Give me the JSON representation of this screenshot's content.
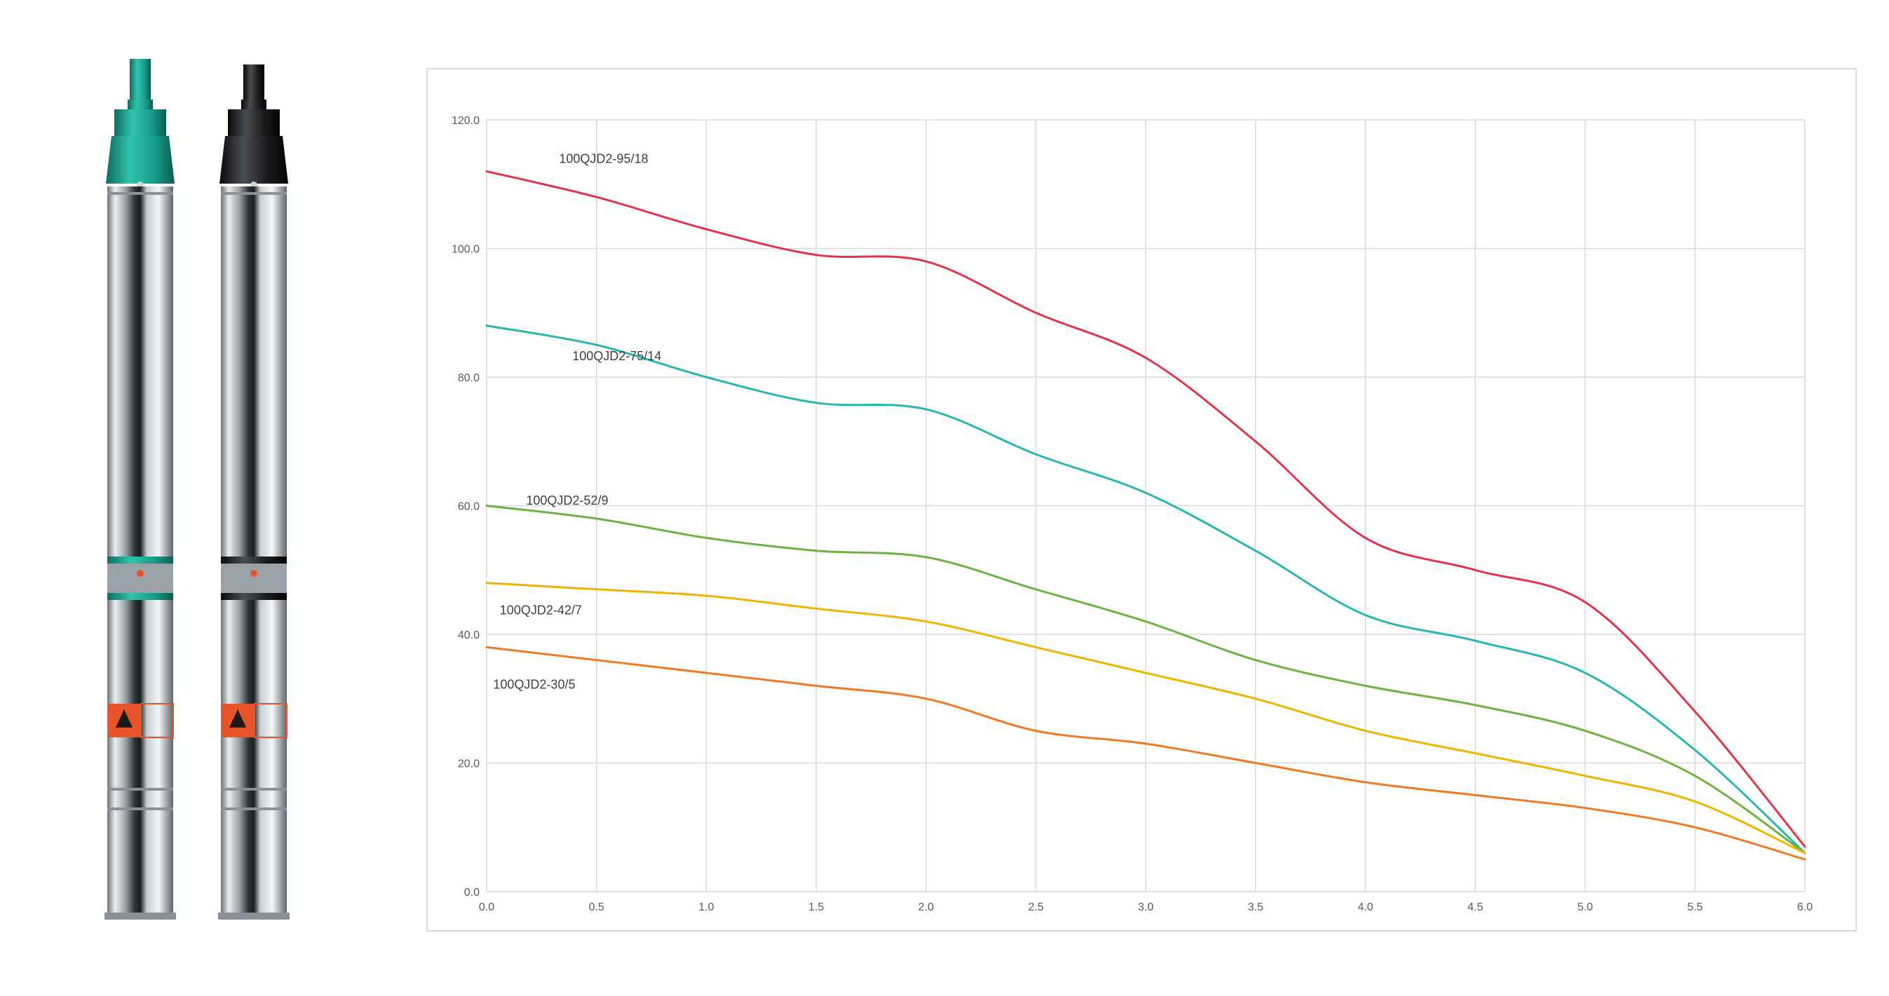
{
  "colors": {
    "grid": "#d9d9d9",
    "teal_accent": "#1a9e8c",
    "black_accent": "#1a1a1a"
  },
  "products": [
    {
      "name": "pump-teal",
      "accent": "#1a9e8c",
      "warning": "#e8542a"
    },
    {
      "name": "pump-black",
      "accent": "#1a1a1a",
      "warning": "#e8542a"
    }
  ],
  "chart_data": {
    "type": "line",
    "title": "",
    "xlabel": "",
    "ylabel": "",
    "xlim": [
      0,
      6
    ],
    "ylim": [
      0,
      120
    ],
    "x_ticks": [
      "0.0",
      "0.5",
      "1.0",
      "1.5",
      "2.0",
      "2.5",
      "3.0",
      "3.5",
      "4.0",
      "4.5",
      "5.0",
      "5.5",
      "6.0"
    ],
    "y_ticks": [
      "0.0",
      "20.0",
      "40.0",
      "60.0",
      "80.0",
      "100.0",
      "120.0"
    ],
    "grid": true,
    "legend": "none",
    "x": [
      0,
      0.5,
      1.0,
      1.5,
      2.0,
      2.5,
      3.0,
      3.5,
      4.0,
      4.5,
      5.0,
      5.5,
      6.0
    ],
    "series": [
      {
        "name": "100QJD2-95/18",
        "color": "#e0344b",
        "values": [
          112,
          108,
          103,
          99,
          98,
          90,
          83,
          70,
          55,
          50,
          45,
          28,
          7
        ]
      },
      {
        "name": "100QJD2-75/14",
        "color": "#27b7b0",
        "values": [
          88,
          85,
          80,
          76,
          75,
          68,
          62,
          53,
          43,
          39,
          34,
          22,
          6
        ]
      },
      {
        "name": "100QJD2-52/9",
        "color": "#6cb33f",
        "values": [
          60,
          58,
          55,
          53,
          52,
          47,
          42,
          36,
          32,
          29,
          25,
          18,
          6
        ]
      },
      {
        "name": "100QJD2-42/7",
        "color": "#f0b400",
        "values": [
          48,
          47,
          46,
          44,
          42,
          38,
          34,
          30,
          25,
          21.5,
          18,
          14,
          6
        ]
      },
      {
        "name": "100QJD2-30/5",
        "color": "#f07a24",
        "values": [
          38,
          36,
          34,
          32,
          30,
          25,
          23,
          20,
          17,
          15,
          13,
          10,
          5
        ]
      }
    ]
  }
}
